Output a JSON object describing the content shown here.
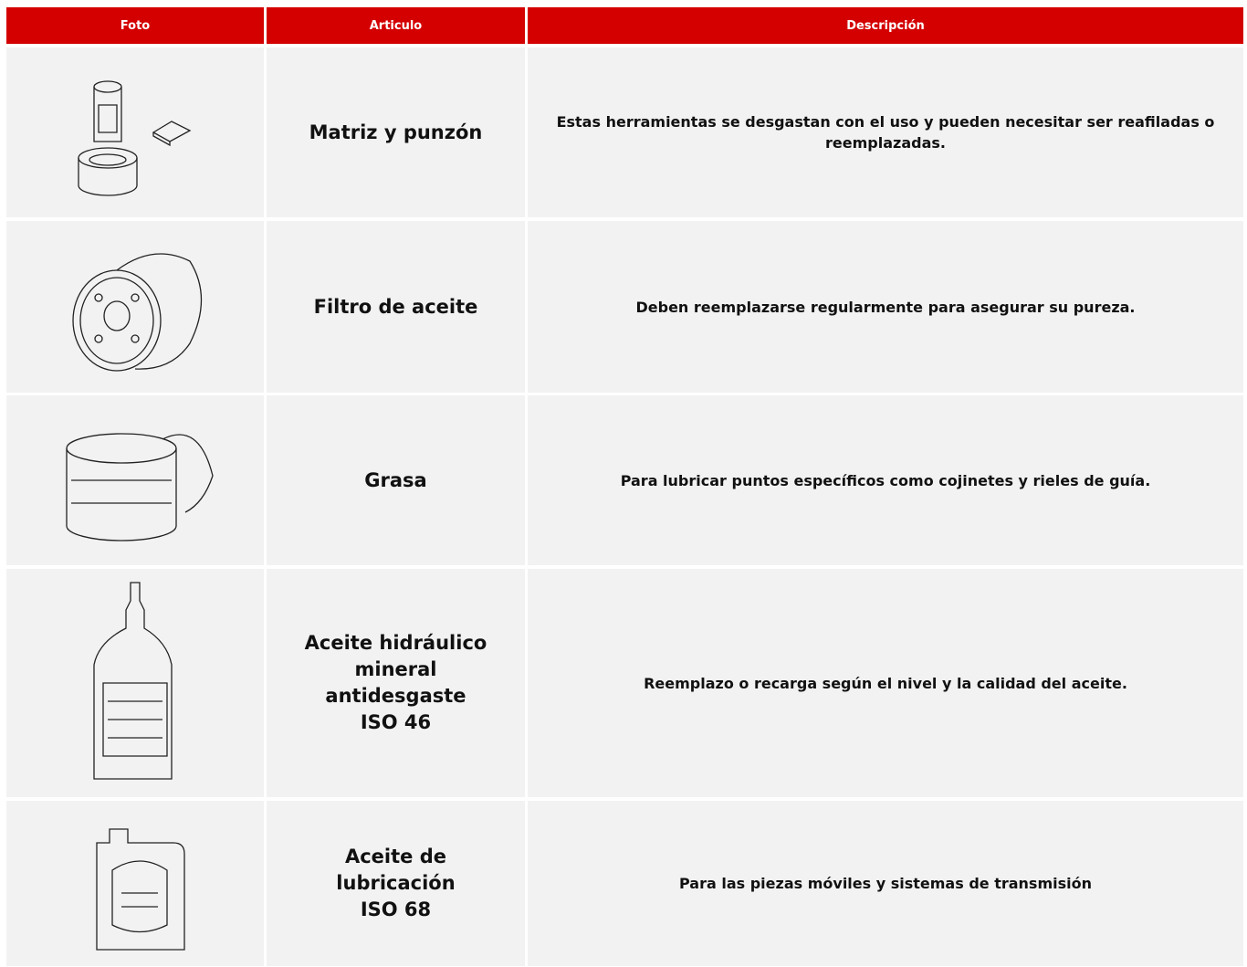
{
  "header": {
    "columns": [
      "Foto",
      "Articulo",
      "Descripción"
    ]
  },
  "table": {
    "rows": [
      [
        "Matriz y punzón",
        "Estas herramientas se desgastan con el uso y pueden necesitar ser reafiladas o reemplazadas."
      ],
      [
        "Filtro de aceite",
        "Deben reemplazarse regularmente para asegurar su pureza."
      ],
      [
        "Grasa",
        "Para lubricar puntos específicos como cojinetes y rieles de guía."
      ],
      [
        "Aceite hidráulico\nmineral\nantidesgaste\nISO 46",
        "Reemplazo o recarga según el nivel y la calidad del aceite."
      ],
      [
        "Aceite de\nlubricación\nISO 68",
        "Para las piezas móviles y sistemas de transmisión"
      ]
    ]
  }
}
